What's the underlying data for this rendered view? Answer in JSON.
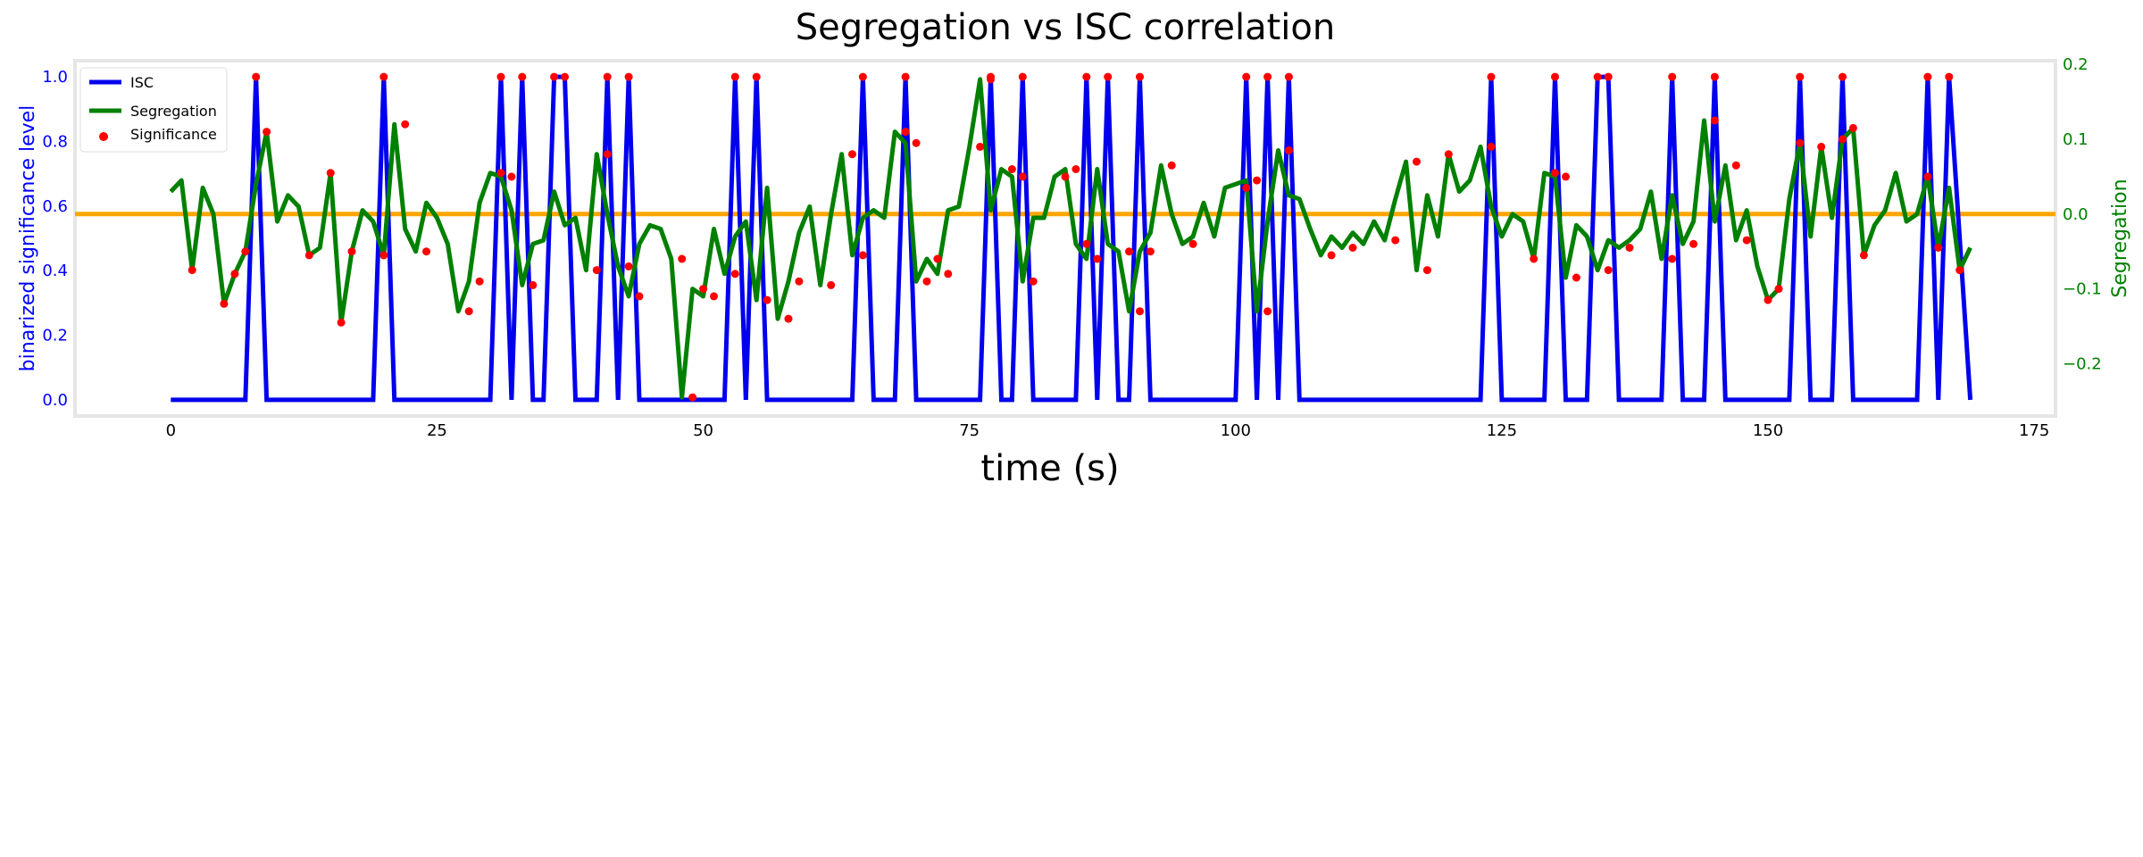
{
  "chart_data": {
    "type": "line",
    "title": "Segregation vs ISC correlation",
    "xlabel": "time (s)",
    "ylabel_left": "binarized significance level",
    "ylabel_right": "Segregation",
    "xlim": [
      -9,
      177
    ],
    "ylim_left": [
      -0.05,
      1.05
    ],
    "ylim_right": [
      -0.27,
      0.205
    ],
    "x_ticks": [
      0,
      25,
      50,
      75,
      100,
      125,
      150,
      175
    ],
    "y_left_ticks": [
      0.0,
      0.2,
      0.4,
      0.6,
      0.8,
      1.0
    ],
    "y_right_ticks": [
      -0.2,
      -0.1,
      0.0,
      0.1,
      0.2
    ],
    "legend_position": "top-left",
    "colors": {
      "isc": "#0000ee",
      "segregation": "#008000",
      "significance": "#ff0000",
      "zero_line": "#ffa500",
      "left_axis": "#0000ff",
      "right_axis": "#008000",
      "spine": "#e6e6e6"
    },
    "series": [
      {
        "name": "ISC",
        "axis": "left",
        "x": [
          0,
          7,
          8,
          9,
          19,
          20,
          21,
          30,
          31,
          32,
          33,
          34,
          35,
          36,
          37,
          38,
          40,
          41,
          42,
          43,
          44,
          52,
          53,
          54,
          55,
          56,
          64,
          65,
          66,
          68,
          69,
          70,
          76,
          77,
          78,
          79,
          80,
          81,
          85,
          86,
          87,
          88,
          89,
          90,
          91,
          92,
          100,
          101,
          102,
          103,
          104,
          105,
          106,
          123,
          124,
          125,
          129,
          130,
          131,
          133,
          134,
          135,
          136,
          140,
          141,
          142,
          144,
          145,
          146,
          152,
          153,
          154,
          156,
          157,
          158,
          164,
          165,
          166,
          167,
          169
        ],
        "values": [
          0,
          0,
          1,
          0,
          0,
          1,
          0,
          0,
          1,
          0,
          1,
          0,
          0,
          1,
          1,
          0,
          0,
          1,
          0,
          1,
          0,
          0,
          1,
          0,
          1,
          0,
          0,
          1,
          0,
          0,
          1,
          0,
          0,
          1,
          0,
          0,
          1,
          0,
          0,
          1,
          0,
          1,
          0,
          0,
          1,
          0,
          0,
          1,
          0,
          1,
          0,
          1,
          0,
          0,
          1,
          0,
          0,
          1,
          0,
          0,
          1,
          1,
          0,
          0,
          1,
          0,
          0,
          1,
          0,
          0,
          1,
          0,
          0,
          1,
          0,
          0,
          1,
          0,
          1,
          0
        ]
      },
      {
        "name": "Segregation",
        "axis": "right",
        "x": [
          0,
          1,
          2,
          3,
          4,
          5,
          6,
          7,
          8,
          9,
          10,
          11,
          12,
          13,
          14,
          15,
          16,
          17,
          18,
          19,
          20,
          21,
          22,
          23,
          24,
          25,
          26,
          27,
          28,
          29,
          30,
          31,
          32,
          33,
          34,
          35,
          36,
          37,
          38,
          39,
          40,
          41,
          42,
          43,
          44,
          45,
          46,
          47,
          48,
          49,
          50,
          51,
          52,
          53,
          54,
          55,
          56,
          57,
          58,
          59,
          60,
          61,
          62,
          63,
          64,
          65,
          66,
          67,
          68,
          69,
          70,
          71,
          72,
          73,
          74,
          75,
          76,
          77,
          78,
          79,
          80,
          81,
          82,
          83,
          84,
          85,
          86,
          87,
          88,
          89,
          90,
          91,
          92,
          93,
          94,
          95,
          96,
          97,
          98,
          99,
          100,
          101,
          102,
          103,
          104,
          105,
          106,
          107,
          108,
          109,
          110,
          111,
          112,
          113,
          114,
          115,
          116,
          117,
          118,
          119,
          120,
          121,
          122,
          123,
          124,
          125,
          126,
          127,
          128,
          129,
          130,
          131,
          132,
          133,
          134,
          135,
          136,
          137,
          138,
          139,
          140,
          141,
          142,
          143,
          144,
          145,
          146,
          147,
          148,
          149,
          150,
          151,
          152,
          153,
          154,
          155,
          156,
          157,
          158,
          159,
          160,
          161,
          162,
          163,
          164,
          165,
          166,
          167,
          168,
          169
        ],
        "values": [
          0.03,
          0.045,
          -0.075,
          0.035,
          0.0,
          -0.12,
          -0.08,
          -0.05,
          0.04,
          0.11,
          -0.01,
          0.025,
          0.01,
          -0.055,
          -0.045,
          0.055,
          -0.145,
          -0.05,
          0.005,
          -0.01,
          -0.055,
          0.12,
          -0.02,
          -0.05,
          0.015,
          -0.005,
          -0.04,
          -0.13,
          -0.09,
          0.015,
          0.055,
          0.05,
          0.005,
          -0.095,
          -0.04,
          -0.035,
          0.03,
          -0.015,
          -0.005,
          -0.075,
          0.08,
          0.0,
          -0.07,
          -0.11,
          -0.04,
          -0.015,
          -0.02,
          -0.06,
          -0.245,
          -0.1,
          -0.11,
          -0.02,
          -0.08,
          -0.03,
          -0.01,
          -0.115,
          0.035,
          -0.14,
          -0.09,
          -0.025,
          0.01,
          -0.095,
          0.0,
          0.08,
          -0.055,
          -0.005,
          0.005,
          -0.005,
          0.11,
          0.095,
          -0.09,
          -0.06,
          -0.08,
          0.005,
          0.01,
          0.09,
          0.18,
          0.005,
          0.06,
          0.05,
          -0.09,
          -0.005,
          -0.005,
          0.05,
          0.06,
          -0.04,
          -0.06,
          0.06,
          -0.04,
          -0.05,
          -0.13,
          -0.05,
          -0.025,
          0.065,
          0.0,
          -0.04,
          -0.03,
          0.015,
          -0.03,
          0.035,
          0.04,
          0.045,
          -0.13,
          -0.01,
          0.085,
          0.025,
          0.02,
          -0.02,
          -0.055,
          -0.03,
          -0.045,
          -0.025,
          -0.04,
          -0.01,
          -0.035,
          0.02,
          0.07,
          -0.075,
          0.025,
          -0.03,
          0.08,
          0.03,
          0.045,
          0.09,
          0.01,
          -0.03,
          0.0,
          -0.01,
          -0.06,
          0.055,
          0.05,
          -0.085,
          -0.015,
          -0.03,
          -0.075,
          -0.035,
          -0.045,
          -0.035,
          -0.02,
          0.03,
          -0.06,
          0.025,
          -0.04,
          -0.01,
          0.125,
          -0.01,
          0.065,
          -0.035,
          0.005,
          -0.07,
          -0.115,
          -0.1,
          0.02,
          0.095,
          -0.03,
          0.09,
          -0.005,
          0.1,
          0.115,
          -0.055,
          -0.015,
          0.005,
          0.055,
          -0.01,
          0.0,
          0.05,
          -0.045,
          0.035,
          -0.075,
          -0.045
        ]
      },
      {
        "name": "Significance",
        "type": "scatter",
        "points": [
          {
            "axis": "left",
            "x": 8,
            "y": 1.0
          },
          {
            "axis": "left",
            "x": 20,
            "y": 1.0
          },
          {
            "axis": "left",
            "x": 31,
            "y": 1.0
          },
          {
            "axis": "left",
            "x": 33,
            "y": 1.0
          },
          {
            "axis": "left",
            "x": 36,
            "y": 1.0
          },
          {
            "axis": "left",
            "x": 37,
            "y": 1.0
          },
          {
            "axis": "left",
            "x": 41,
            "y": 1.0
          },
          {
            "axis": "left",
            "x": 43,
            "y": 1.0
          },
          {
            "axis": "left",
            "x": 53,
            "y": 1.0
          },
          {
            "axis": "left",
            "x": 55,
            "y": 1.0
          },
          {
            "axis": "left",
            "x": 65,
            "y": 1.0
          },
          {
            "axis": "left",
            "x": 69,
            "y": 1.0
          },
          {
            "axis": "left",
            "x": 77,
            "y": 1.0
          },
          {
            "axis": "left",
            "x": 80,
            "y": 1.0
          },
          {
            "axis": "left",
            "x": 86,
            "y": 1.0
          },
          {
            "axis": "left",
            "x": 88,
            "y": 1.0
          },
          {
            "axis": "left",
            "x": 91,
            "y": 1.0
          },
          {
            "axis": "left",
            "x": 101,
            "y": 1.0
          },
          {
            "axis": "left",
            "x": 103,
            "y": 1.0
          },
          {
            "axis": "left",
            "x": 105,
            "y": 1.0
          },
          {
            "axis": "left",
            "x": 124,
            "y": 1.0
          },
          {
            "axis": "left",
            "x": 130,
            "y": 1.0
          },
          {
            "axis": "left",
            "x": 134,
            "y": 1.0
          },
          {
            "axis": "left",
            "x": 135,
            "y": 1.0
          },
          {
            "axis": "left",
            "x": 141,
            "y": 1.0
          },
          {
            "axis": "left",
            "x": 145,
            "y": 1.0
          },
          {
            "axis": "left",
            "x": 153,
            "y": 1.0
          },
          {
            "axis": "left",
            "x": 157,
            "y": 1.0
          },
          {
            "axis": "left",
            "x": 165,
            "y": 1.0
          },
          {
            "axis": "left",
            "x": 167,
            "y": 1.0
          },
          {
            "axis": "right",
            "x": 2,
            "y": -0.075
          },
          {
            "axis": "right",
            "x": 5,
            "y": -0.12
          },
          {
            "axis": "right",
            "x": 6,
            "y": -0.08
          },
          {
            "axis": "right",
            "x": 7,
            "y": -0.05
          },
          {
            "axis": "right",
            "x": 9,
            "y": 0.11
          },
          {
            "axis": "right",
            "x": 13,
            "y": -0.055
          },
          {
            "axis": "right",
            "x": 15,
            "y": 0.055
          },
          {
            "axis": "right",
            "x": 16,
            "y": -0.145
          },
          {
            "axis": "right",
            "x": 17,
            "y": -0.05
          },
          {
            "axis": "right",
            "x": 20,
            "y": -0.055
          },
          {
            "axis": "right",
            "x": 22,
            "y": 0.12
          },
          {
            "axis": "right",
            "x": 24,
            "y": -0.05
          },
          {
            "axis": "right",
            "x": 28,
            "y": -0.13
          },
          {
            "axis": "right",
            "x": 29,
            "y": -0.09
          },
          {
            "axis": "right",
            "x": 31,
            "y": 0.055
          },
          {
            "axis": "right",
            "x": 32,
            "y": 0.05
          },
          {
            "axis": "right",
            "x": 34,
            "y": -0.095
          },
          {
            "axis": "right",
            "x": 40,
            "y": -0.075
          },
          {
            "axis": "right",
            "x": 41,
            "y": 0.08
          },
          {
            "axis": "right",
            "x": 43,
            "y": -0.07
          },
          {
            "axis": "right",
            "x": 44,
            "y": -0.11
          },
          {
            "axis": "right",
            "x": 48,
            "y": -0.06
          },
          {
            "axis": "right",
            "x": 49,
            "y": -0.245
          },
          {
            "axis": "right",
            "x": 50,
            "y": -0.1
          },
          {
            "axis": "right",
            "x": 51,
            "y": -0.11
          },
          {
            "axis": "right",
            "x": 53,
            "y": -0.08
          },
          {
            "axis": "right",
            "x": 56,
            "y": -0.115
          },
          {
            "axis": "right",
            "x": 58,
            "y": -0.14
          },
          {
            "axis": "right",
            "x": 59,
            "y": -0.09
          },
          {
            "axis": "right",
            "x": 62,
            "y": -0.095
          },
          {
            "axis": "right",
            "x": 64,
            "y": 0.08
          },
          {
            "axis": "right",
            "x": 65,
            "y": -0.055
          },
          {
            "axis": "right",
            "x": 69,
            "y": 0.11
          },
          {
            "axis": "right",
            "x": 70,
            "y": 0.095
          },
          {
            "axis": "right",
            "x": 71,
            "y": -0.09
          },
          {
            "axis": "right",
            "x": 72,
            "y": -0.06
          },
          {
            "axis": "right",
            "x": 73,
            "y": -0.08
          },
          {
            "axis": "right",
            "x": 76,
            "y": 0.09
          },
          {
            "axis": "right",
            "x": 77,
            "y": 0.18
          },
          {
            "axis": "right",
            "x": 79,
            "y": 0.06
          },
          {
            "axis": "right",
            "x": 80,
            "y": 0.05
          },
          {
            "axis": "right",
            "x": 81,
            "y": -0.09
          },
          {
            "axis": "right",
            "x": 84,
            "y": 0.05
          },
          {
            "axis": "right",
            "x": 85,
            "y": 0.06
          },
          {
            "axis": "right",
            "x": 86,
            "y": -0.04
          },
          {
            "axis": "right",
            "x": 87,
            "y": -0.06
          },
          {
            "axis": "right",
            "x": 90,
            "y": -0.05
          },
          {
            "axis": "right",
            "x": 91,
            "y": -0.13
          },
          {
            "axis": "right",
            "x": 92,
            "y": -0.05
          },
          {
            "axis": "right",
            "x": 94,
            "y": 0.065
          },
          {
            "axis": "right",
            "x": 96,
            "y": -0.04
          },
          {
            "axis": "right",
            "x": 101,
            "y": 0.035
          },
          {
            "axis": "right",
            "x": 102,
            "y": 0.045
          },
          {
            "axis": "right",
            "x": 103,
            "y": -0.13
          },
          {
            "axis": "right",
            "x": 105,
            "y": 0.085
          },
          {
            "axis": "right",
            "x": 109,
            "y": -0.055
          },
          {
            "axis": "right",
            "x": 111,
            "y": -0.045
          },
          {
            "axis": "right",
            "x": 115,
            "y": -0.035
          },
          {
            "axis": "right",
            "x": 117,
            "y": 0.07
          },
          {
            "axis": "right",
            "x": 118,
            "y": -0.075
          },
          {
            "axis": "right",
            "x": 120,
            "y": 0.08
          },
          {
            "axis": "right",
            "x": 124,
            "y": 0.09
          },
          {
            "axis": "right",
            "x": 128,
            "y": -0.06
          },
          {
            "axis": "right",
            "x": 130,
            "y": 0.055
          },
          {
            "axis": "right",
            "x": 131,
            "y": 0.05
          },
          {
            "axis": "right",
            "x": 132,
            "y": -0.085
          },
          {
            "axis": "right",
            "x": 135,
            "y": -0.075
          },
          {
            "axis": "right",
            "x": 137,
            "y": -0.045
          },
          {
            "axis": "right",
            "x": 141,
            "y": -0.06
          },
          {
            "axis": "right",
            "x": 143,
            "y": -0.04
          },
          {
            "axis": "right",
            "x": 145,
            "y": 0.125
          },
          {
            "axis": "right",
            "x": 147,
            "y": 0.065
          },
          {
            "axis": "right",
            "x": 148,
            "y": -0.035
          },
          {
            "axis": "right",
            "x": 150,
            "y": -0.115
          },
          {
            "axis": "right",
            "x": 151,
            "y": -0.1
          },
          {
            "axis": "right",
            "x": 153,
            "y": 0.095
          },
          {
            "axis": "right",
            "x": 155,
            "y": 0.09
          },
          {
            "axis": "right",
            "x": 157,
            "y": 0.1
          },
          {
            "axis": "right",
            "x": 158,
            "y": 0.115
          },
          {
            "axis": "right",
            "x": 159,
            "y": -0.055
          },
          {
            "axis": "right",
            "x": 165,
            "y": 0.05
          },
          {
            "axis": "right",
            "x": 166,
            "y": -0.045
          },
          {
            "axis": "right",
            "x": 168,
            "y": -0.075
          }
        ]
      }
    ]
  }
}
